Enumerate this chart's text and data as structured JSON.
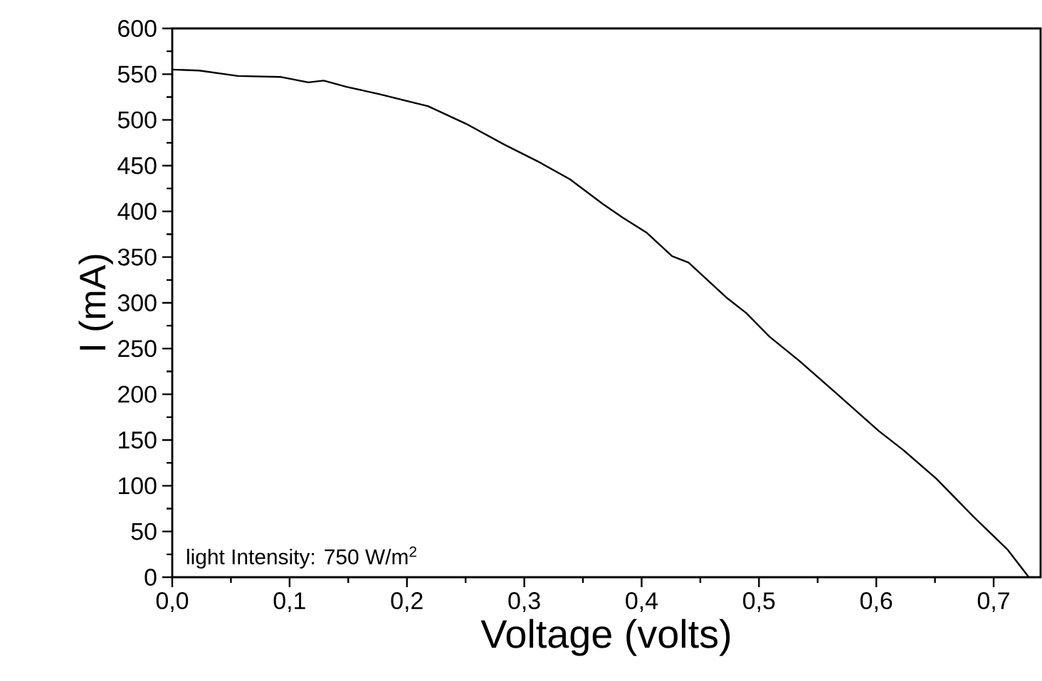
{
  "chart_data": {
    "type": "line",
    "xlabel": "Voltage (volts)",
    "ylabel": "I (mA)",
    "annotations": [
      "light Intensity: 750 W/m$^{2}$"
    ],
    "x": [
      0,
      0.023,
      0.056,
      0.092,
      0.116,
      0.129,
      0.149,
      0.177,
      0.202,
      0.218,
      0.25,
      0.283,
      0.311,
      0.339,
      0.367,
      0.384,
      0.404,
      0.426,
      0.44,
      0.473,
      0.489,
      0.509,
      0.534,
      0.566,
      0.602,
      0.623,
      0.651,
      0.683,
      0.712,
      0.73
    ],
    "values": [
      555,
      554,
      548,
      547,
      541,
      543,
      536,
      528,
      520,
      515,
      496,
      473,
      455,
      435,
      408,
      393,
      377,
      351,
      344,
      305,
      289,
      263,
      237,
      201,
      160,
      139,
      108,
      66,
      30,
      0
    ],
    "color": "#000000",
    "line_style": "solid",
    "xlim": [
      0,
      0.74
    ],
    "ylim": [
      0,
      600
    ],
    "xticks": [
      {
        "value": 0,
        "label": "0,0"
      },
      {
        "value": 0.1,
        "label": "0,1"
      },
      {
        "value": 0.2,
        "label": "0,2"
      },
      {
        "value": 0.3,
        "label": "0,3"
      },
      {
        "value": 0.4,
        "label": "0,4"
      },
      {
        "value": 0.5,
        "label": "0,5"
      },
      {
        "value": 0.6,
        "label": "0,6"
      },
      {
        "value": 0.7,
        "label": "0,7"
      }
    ],
    "yticks": [
      0,
      50,
      100,
      150,
      200,
      250,
      300,
      350,
      400,
      450,
      500,
      550,
      600
    ]
  }
}
